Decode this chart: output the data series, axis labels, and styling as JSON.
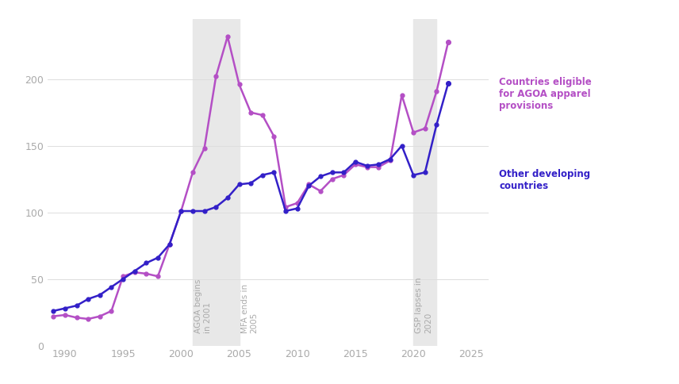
{
  "purple_label": "Countries eligible\nfor AGOA apparel\nprovisions",
  "blue_label": "Other developing\ncountries",
  "purple_color": "#b44fc5",
  "blue_color": "#3320c8",
  "background_color": "#ffffff",
  "shade_color": "#e8e8e8",
  "shade_regions": [
    {
      "x_start": 2001,
      "x_end": 2005
    },
    {
      "x_start": 2020,
      "x_end": 2022
    }
  ],
  "label_agoa": "AGOA begins\nin 2001",
  "label_mfa": "MFA ends in\n2005",
  "label_gsp": "GSP lapses in\n2020",
  "label_color": "#aaaaaa",
  "ylim": [
    0,
    245
  ],
  "xlim": [
    1988.5,
    2026.5
  ],
  "yticks": [
    0,
    50,
    100,
    150,
    200
  ],
  "xticks": [
    1990,
    1995,
    2000,
    2005,
    2010,
    2015,
    2020,
    2025
  ],
  "grid_color": "#dddddd",
  "tick_color": "#aaaaaa",
  "purple_years": [
    1989,
    1990,
    1991,
    1992,
    1993,
    1994,
    1995,
    1996,
    1997,
    1998,
    1999,
    2000,
    2001,
    2002,
    2003,
    2004,
    2005,
    2006,
    2007,
    2008,
    2009,
    2010,
    2011,
    2012,
    2013,
    2014,
    2015,
    2016,
    2017,
    2018,
    2019,
    2020,
    2021,
    2022,
    2023
  ],
  "purple_values": [
    22,
    23,
    21,
    20,
    22,
    26,
    52,
    55,
    54,
    52,
    76,
    101,
    130,
    148,
    202,
    232,
    196,
    175,
    173,
    157,
    104,
    107,
    121,
    116,
    125,
    128,
    136,
    134,
    134,
    139,
    188,
    160,
    163,
    191,
    228
  ],
  "blue_years": [
    1989,
    1990,
    1991,
    1992,
    1993,
    1994,
    1995,
    1996,
    1997,
    1998,
    1999,
    2000,
    2001,
    2002,
    2003,
    2004,
    2005,
    2006,
    2007,
    2008,
    2009,
    2010,
    2011,
    2012,
    2013,
    2014,
    2015,
    2016,
    2017,
    2018,
    2019,
    2020,
    2021,
    2022,
    2023
  ],
  "blue_values": [
    26,
    28,
    30,
    35,
    38,
    44,
    50,
    56,
    62,
    66,
    76,
    101,
    101,
    101,
    104,
    111,
    121,
    122,
    128,
    130,
    101,
    103,
    120,
    127,
    130,
    130,
    138,
    135,
    136,
    140,
    150,
    128,
    130,
    166,
    197
  ],
  "marker_size": 3.5,
  "linewidth": 1.8,
  "annotation_fontsize": 8.5,
  "tick_fontsize": 9
}
